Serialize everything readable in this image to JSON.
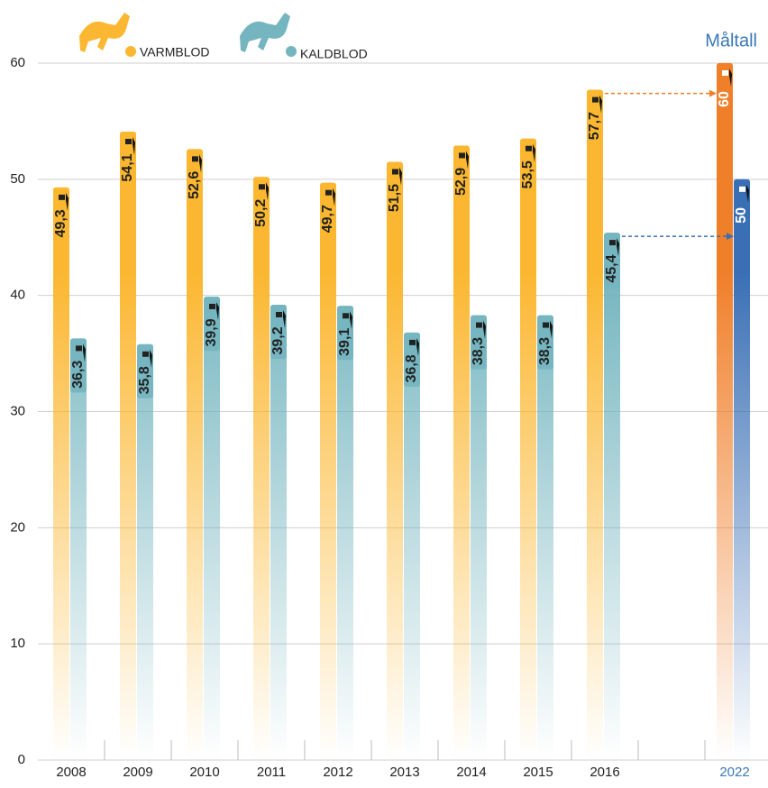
{
  "chart_data": {
    "type": "bar",
    "annotation": "Måltall",
    "categories": [
      "2008",
      "2009",
      "2010",
      "2011",
      "2012",
      "2013",
      "2014",
      "2015",
      "2016",
      null,
      "2022"
    ],
    "highlight_category_color": "#3a78b5",
    "series": [
      {
        "name": "VARMBLOD",
        "color": "#fbb731",
        "highlight_color": "#f07f2a",
        "values": [
          49.3,
          54.1,
          52.6,
          50.2,
          49.7,
          51.5,
          52.9,
          53.5,
          57.7,
          null,
          60
        ],
        "value_labels": [
          "49,3",
          "54,1",
          "52,6",
          "50,2",
          "49,7",
          "51,5",
          "52,9",
          "53,5",
          "57,7",
          null,
          "60"
        ]
      },
      {
        "name": "KALDBLOD",
        "color": "#74b5bf",
        "highlight_color": "#3a6fb5",
        "values": [
          36.3,
          35.8,
          39.9,
          39.2,
          39.1,
          36.8,
          38.3,
          38.3,
          45.4,
          null,
          50
        ],
        "value_labels": [
          "36,3",
          "35,8",
          "39,9",
          "39,2",
          "39,1",
          "36,8",
          "38,3",
          "38,3",
          "45,4",
          null,
          "50"
        ]
      }
    ],
    "ylim": [
      0,
      60
    ],
    "yticks": [
      0,
      10,
      20,
      30,
      40,
      50,
      60
    ],
    "grid": true
  }
}
